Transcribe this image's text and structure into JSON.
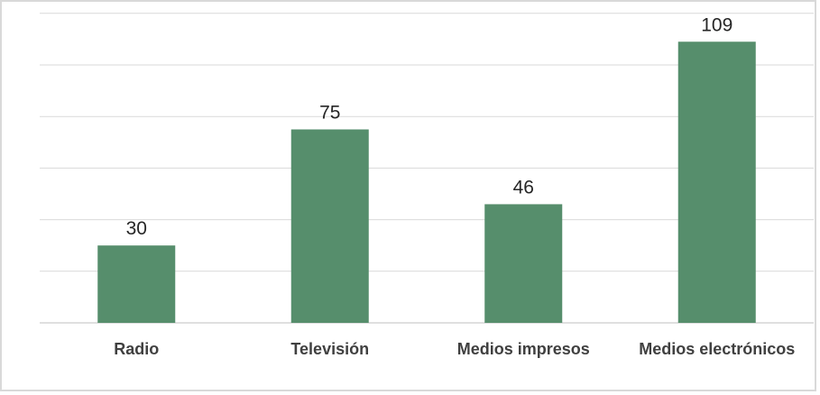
{
  "chart_data": {
    "type": "bar",
    "categories": [
      "Radio",
      "Televisión",
      "Medios impresos",
      "Medios electrónicos"
    ],
    "values": [
      30,
      75,
      46,
      109
    ],
    "title": "",
    "xlabel": "",
    "ylabel": "",
    "ylim": [
      0,
      120
    ],
    "grid": true,
    "legend": "none",
    "bar_color": "#568e6c"
  }
}
